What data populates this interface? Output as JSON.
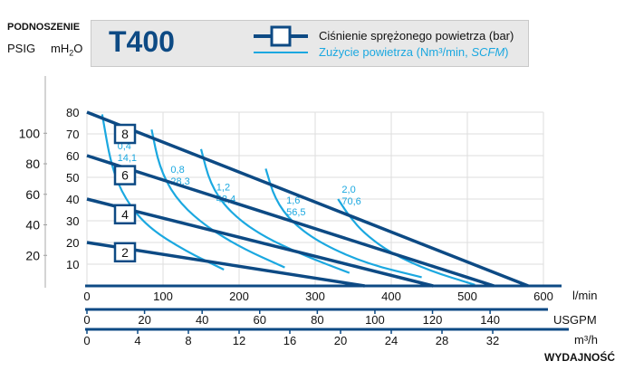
{
  "chart_data": {
    "type": "line",
    "title": "T400",
    "y_axis_left_title": "PODNOSZENIE",
    "y_axis_left_unit_psig": "PSIG",
    "y_axis_left_unit_mh2o": "mH",
    "y_axis_left_unit_mh2o_sub": "2",
    "y_axis_left_unit_mh2o_tail": "O",
    "x_axis_title": "WYDAJNOŚĆ",
    "x_unit_lmin": "l/min",
    "x_unit_usgpm": "USGPM",
    "x_unit_m3h": "m³/h",
    "psig_ticks": [
      "100",
      "80",
      "60",
      "40",
      "20"
    ],
    "psig_values": [
      100,
      80,
      60,
      40,
      20
    ],
    "mh2o_ticks": [
      "80",
      "70",
      "60",
      "50",
      "40",
      "30",
      "20",
      "10"
    ],
    "mh2o_values": [
      80,
      70,
      60,
      50,
      40,
      30,
      20,
      10
    ],
    "lmin_ticks": [
      "0",
      "100",
      "200",
      "300",
      "400",
      "500",
      "600"
    ],
    "lmin_values": [
      0,
      100,
      200,
      300,
      400,
      500,
      600
    ],
    "usgpm_ticks": [
      "0",
      "20",
      "40",
      "60",
      "80",
      "100",
      "120",
      "140"
    ],
    "m3h_ticks": [
      "0",
      "4",
      "8",
      "12",
      "16",
      "20",
      "24",
      "28",
      "32"
    ],
    "xlim": [
      0,
      600
    ],
    "ylim_mh2o": [
      0,
      80
    ],
    "legend_pressure": "Ciśnienie sprężonego powietrza (bar)",
    "legend_air_prefix": "Zużycie powietrza (Nm³/min, ",
    "legend_air_italic": "SCFM",
    "legend_air_suffix": ")",
    "pressure_series": [
      {
        "name": "8",
        "x": [
          0,
          580
        ],
        "y": [
          80,
          0
        ],
        "label_at": [
          50,
          70
        ]
      },
      {
        "name": "6",
        "x": [
          0,
          535
        ],
        "y": [
          60,
          0
        ],
        "label_at": [
          50,
          51
        ]
      },
      {
        "name": "4",
        "x": [
          0,
          455
        ],
        "y": [
          40,
          0
        ],
        "label_at": [
          50,
          33
        ]
      },
      {
        "name": "2",
        "x": [
          0,
          365
        ],
        "y": [
          20,
          0
        ],
        "label_at": [
          50,
          15.5
        ]
      }
    ],
    "air_series": [
      {
        "line1": "0,4",
        "line2": "14,1",
        "label_at": [
          40,
          63
        ],
        "x": [
          20,
          32,
          50,
          80,
          130,
          180
        ],
        "y": [
          79,
          55,
          40,
          27,
          16,
          7.5
        ]
      },
      {
        "line1": "0,8",
        "line2": "28,3",
        "label_at": [
          110,
          52
        ],
        "x": [
          85,
          95,
          115,
          150,
          200,
          260
        ],
        "y": [
          72,
          55,
          41,
          29,
          18,
          8.5
        ]
      },
      {
        "line1": "1,2",
        "line2": "42,4",
        "label_at": [
          170,
          44
        ],
        "x": [
          150,
          162,
          185,
          225,
          285,
          345
        ],
        "y": [
          63,
          47,
          35,
          24,
          14,
          6
        ]
      },
      {
        "line1": "1,6",
        "line2": "56,5",
        "label_at": [
          262,
          38
        ],
        "x": [
          235,
          247,
          270,
          310,
          370,
          440
        ],
        "y": [
          54,
          40,
          29,
          19,
          10,
          4
        ]
      },
      {
        "line1": "2,0",
        "line2": "70,6",
        "label_at": [
          335,
          43
        ],
        "x": [
          330,
          345,
          365,
          400,
          450,
          510
        ],
        "y": [
          40,
          32,
          24,
          15,
          7,
          0.5
        ]
      }
    ],
    "colors": {
      "pressure": "#0d4a84",
      "air": "#1ba8e0",
      "grid": "#dddddd",
      "axis": "#0d4a84",
      "title_box": "#e8e8e8"
    }
  }
}
